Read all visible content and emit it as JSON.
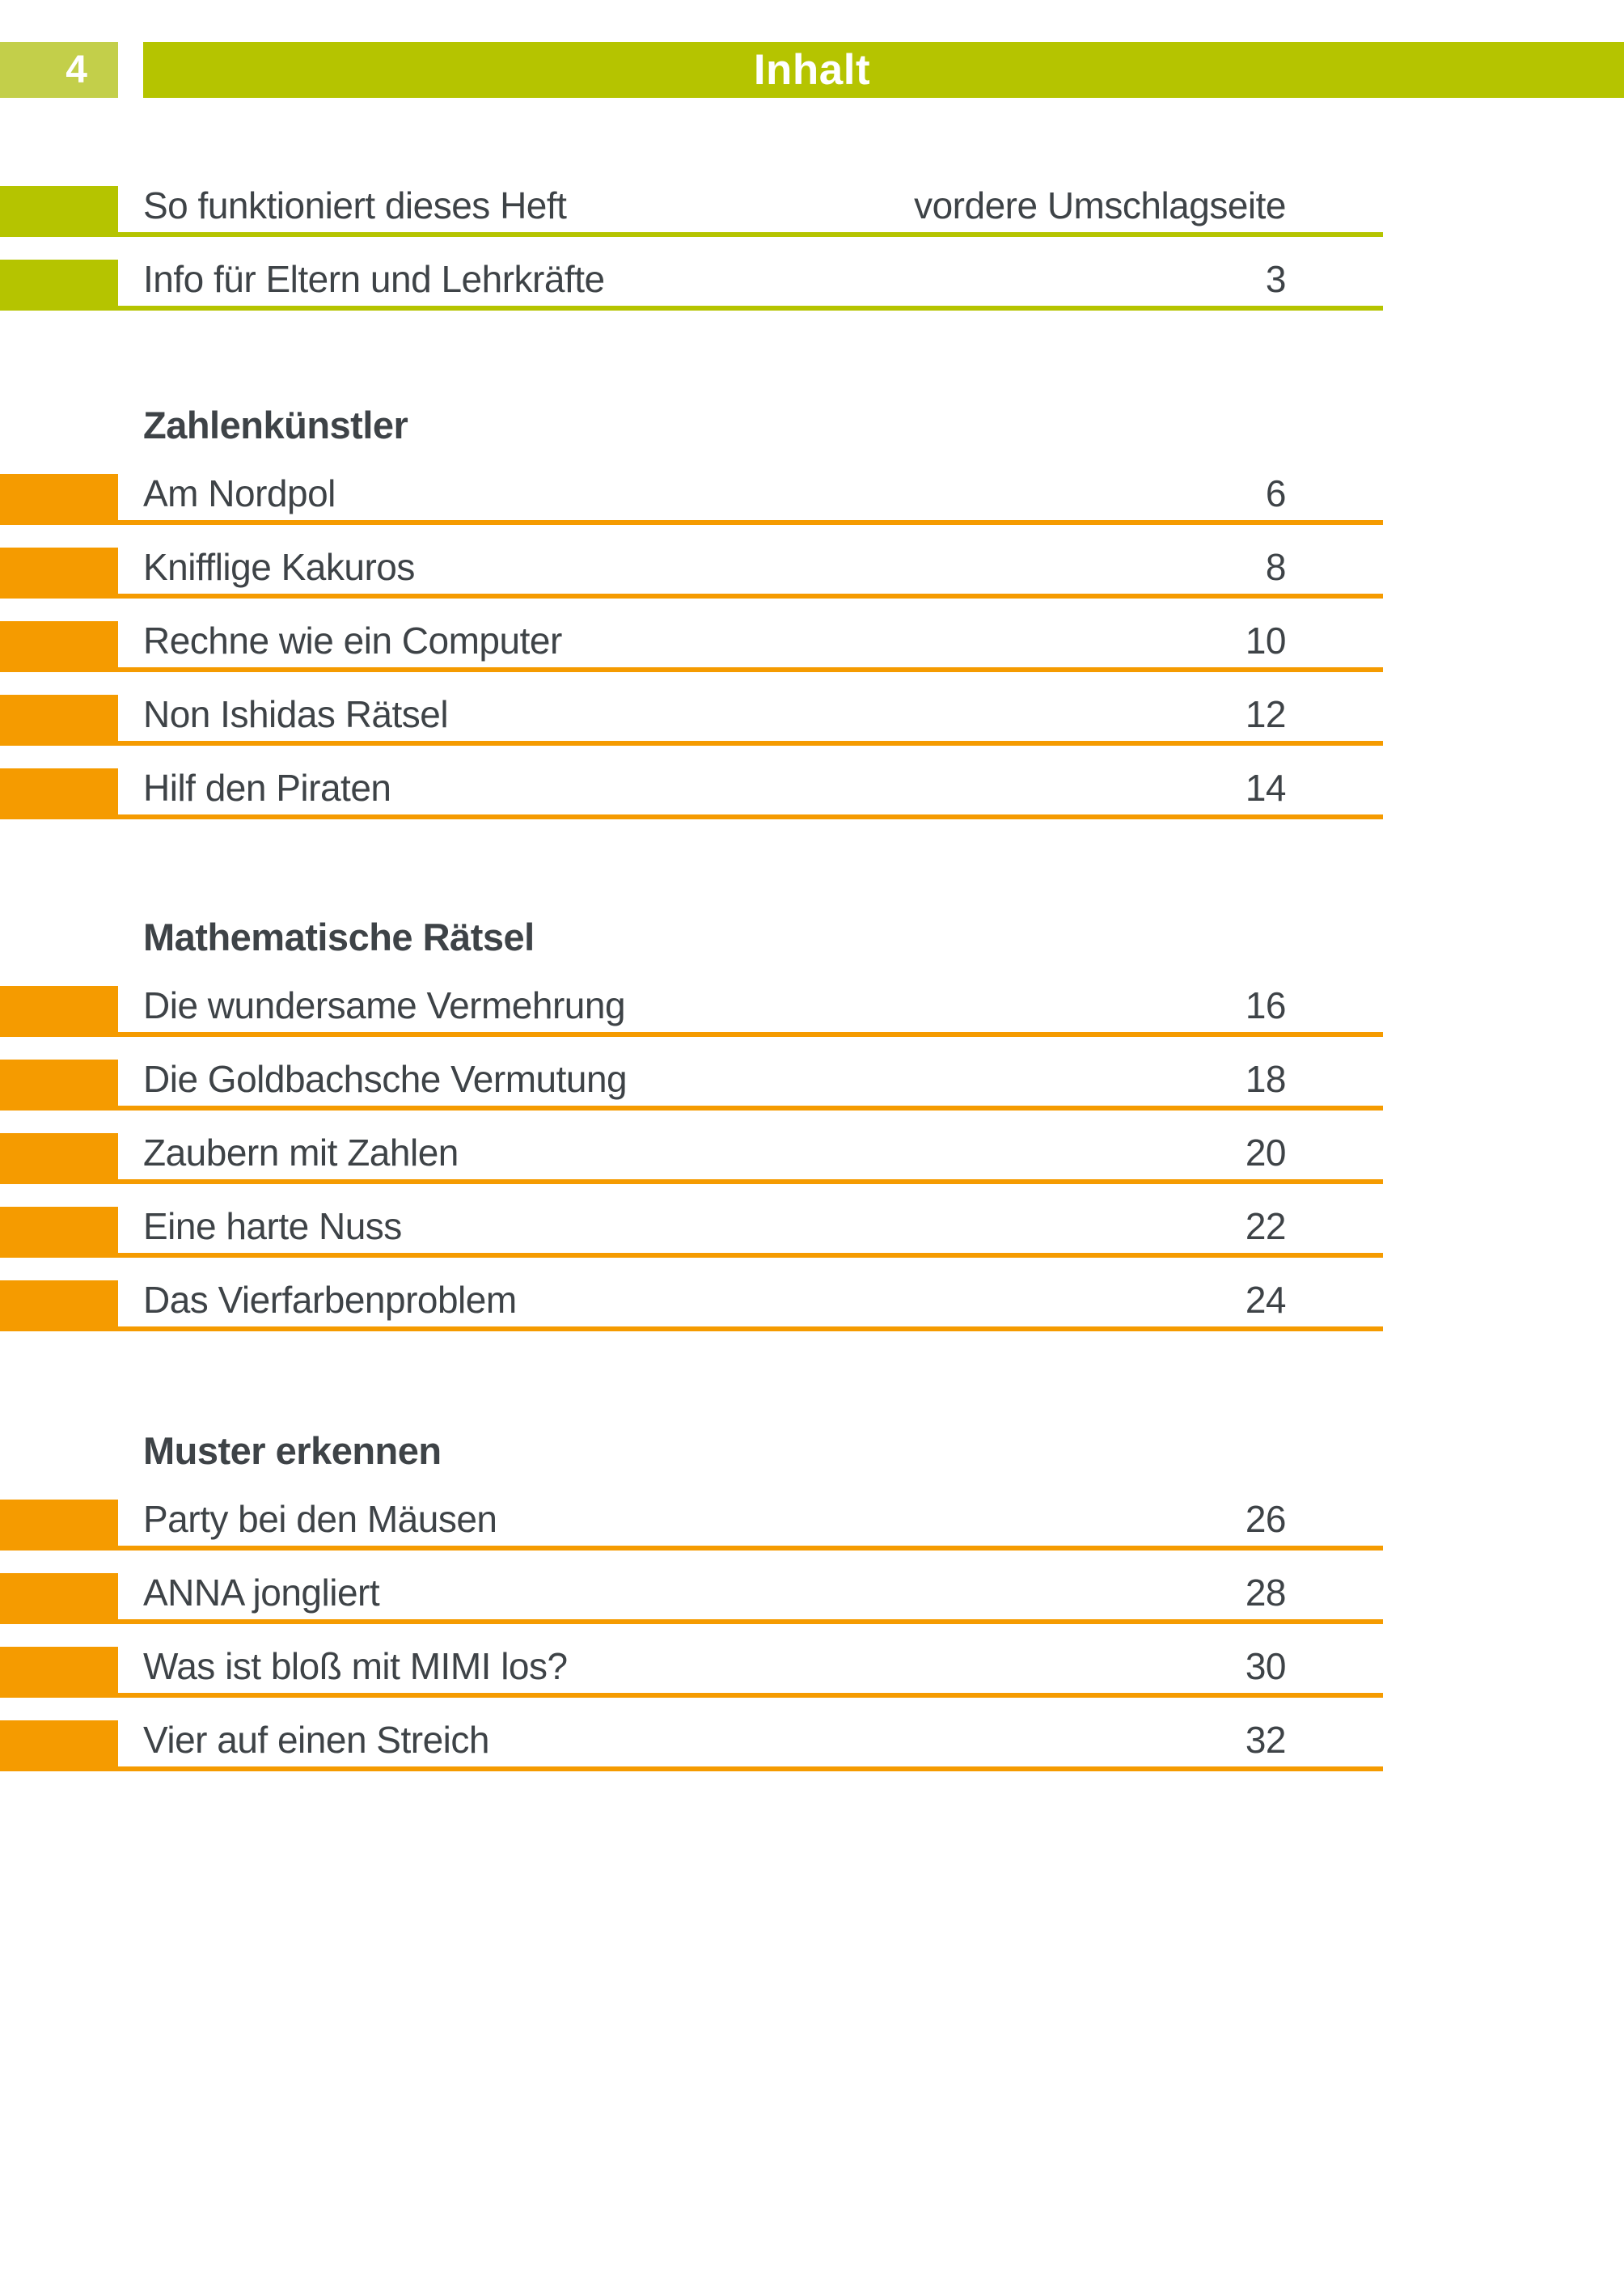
{
  "colors": {
    "green": "#b5c400",
    "light_green": "#c3cf4a",
    "orange": "#f59b00",
    "text": "#3e4347",
    "page_bg": "#ffffff"
  },
  "page": {
    "number": "4",
    "header_title": "Inhalt"
  },
  "toc": {
    "front_matter": [
      {
        "title": "So funktioniert dieses Heft",
        "page": "vordere Umschlagseite"
      },
      {
        "title": "Info für Eltern und Lehrkräfte",
        "page": "3"
      }
    ],
    "sections": [
      {
        "heading": "Zahlenkünstler",
        "items": [
          {
            "title": "Am Nordpol",
            "page": "6"
          },
          {
            "title": "Knifflige Kakuros",
            "page": "8"
          },
          {
            "title": "Rechne wie ein Computer",
            "page": "10"
          },
          {
            "title": "Non Ishidas Rätsel",
            "page": "12"
          },
          {
            "title": "Hilf den Piraten",
            "page": "14"
          }
        ]
      },
      {
        "heading": "Mathematische Rätsel",
        "items": [
          {
            "title": "Die wundersame Vermehrung",
            "page": "16"
          },
          {
            "title": "Die Goldbachsche Vermutung",
            "page": "18"
          },
          {
            "title": "Zaubern mit Zahlen",
            "page": "20"
          },
          {
            "title": "Eine harte Nuss",
            "page": "22"
          },
          {
            "title": "Das Vierfarbenproblem",
            "page": "24"
          }
        ]
      },
      {
        "heading": "Muster erkennen",
        "items": [
          {
            "title": "Party bei den Mäusen",
            "page": "26"
          },
          {
            "title": "ANNA jongliert",
            "page": "28"
          },
          {
            "title": "Was ist bloß mit MIMI los?",
            "page": "30"
          },
          {
            "title": "Vier auf einen Streich",
            "page": "32"
          }
        ]
      }
    ]
  }
}
